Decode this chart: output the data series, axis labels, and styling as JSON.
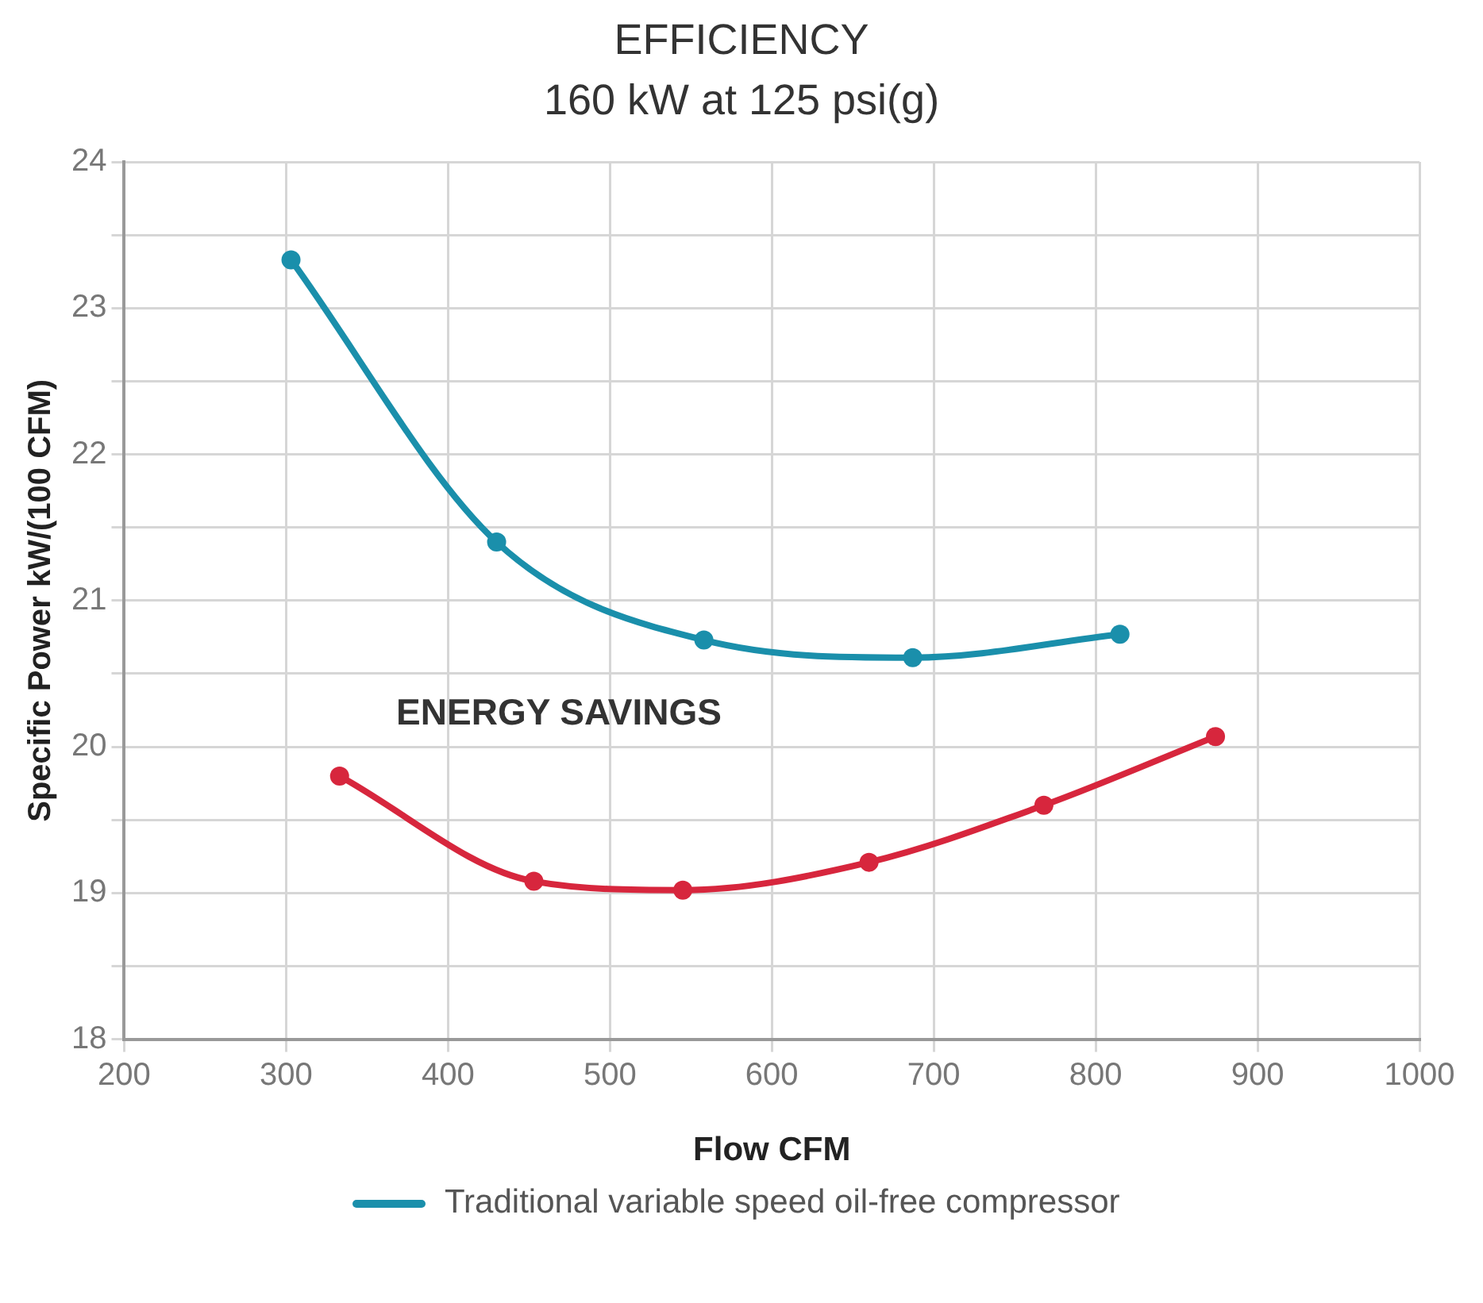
{
  "chart_data": {
    "type": "line",
    "title": "EFFICIENCY",
    "subtitle": "160 kW at 125 psi(g)",
    "xlabel": "Flow CFM",
    "ylabel": "Specific Power kW/(100 CFM)",
    "series": [
      {
        "name": "Traditional variable speed oil-free compressor",
        "color": "#1a8fab",
        "x": [
          303,
          430,
          558,
          687,
          815
        ],
        "values": [
          23.33,
          21.4,
          20.73,
          20.61,
          20.77
        ]
      },
      {
        "color": "#d7263d",
        "x": [
          333,
          453,
          545,
          660,
          768,
          874
        ],
        "values": [
          19.8,
          19.08,
          19.02,
          19.21,
          19.6,
          20.07
        ]
      }
    ],
    "xlim": [
      200,
      1000
    ],
    "xticks": [
      200,
      300,
      400,
      500,
      600,
      700,
      800,
      900,
      1000
    ],
    "ylim": [
      18,
      24
    ],
    "yticks": [
      18,
      {
        "value": 18.5,
        "label": null
      },
      19,
      {
        "value": 19.5,
        "label": null
      },
      20,
      {
        "value": 20.5,
        "label": null
      },
      21,
      {
        "value": 21.5,
        "label": null
      },
      22,
      {
        "value": 22.5,
        "label": null
      },
      23,
      {
        "value": 23.5,
        "label": null
      },
      24
    ],
    "grid": true,
    "legend": "bottom",
    "marker": "circle",
    "line_style": "solid",
    "annotations": [
      "ENERGY SAVINGS"
    ]
  }
}
